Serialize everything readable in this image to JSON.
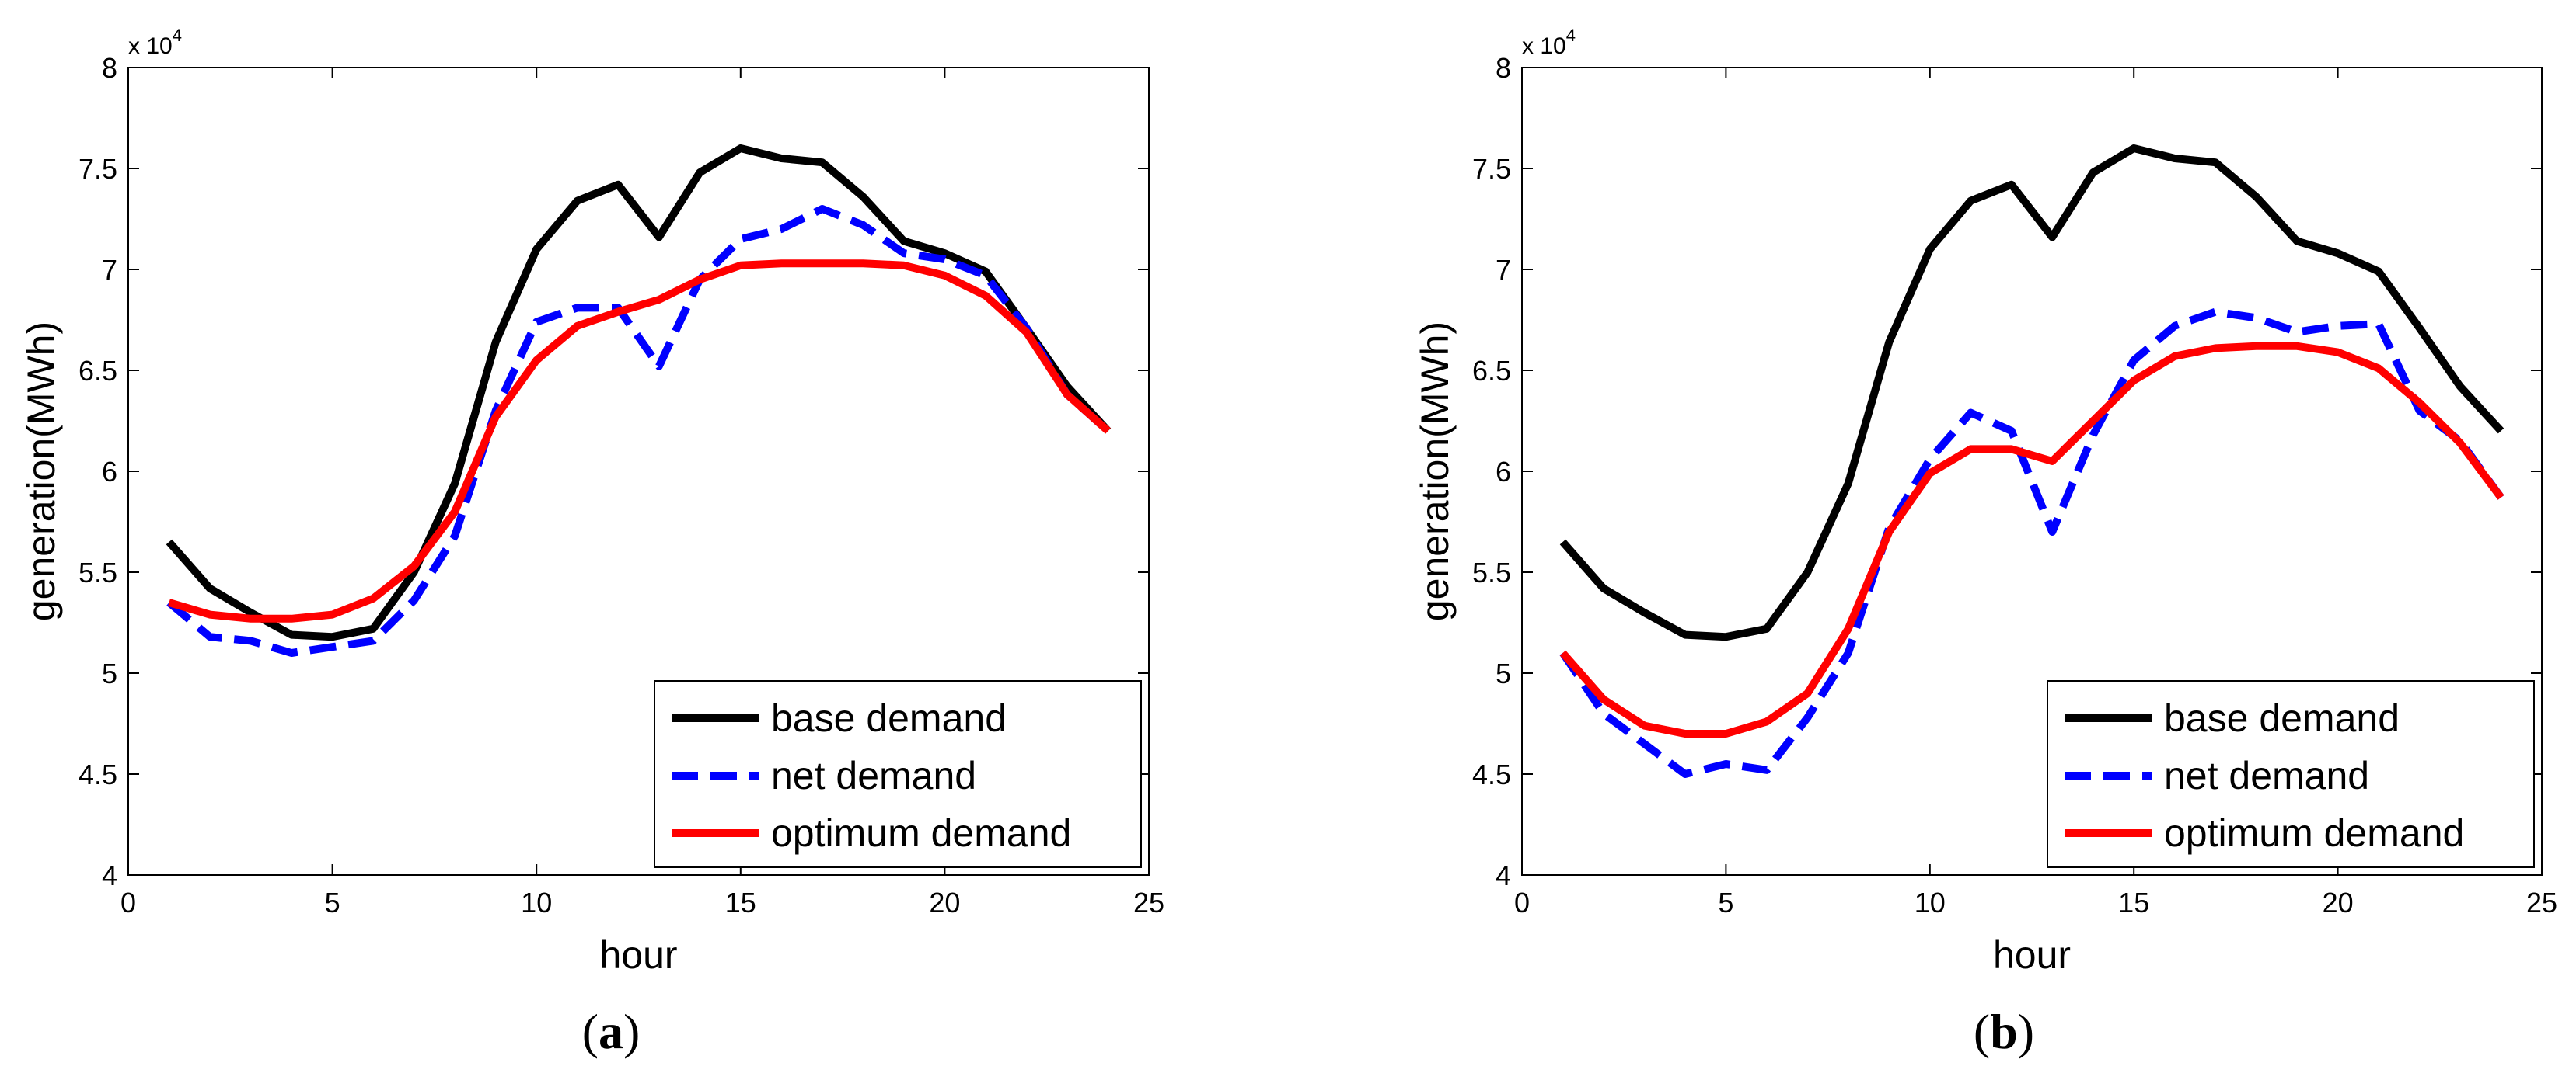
{
  "figure": {
    "panels": [
      {
        "label_open": "(",
        "label_letter": "a",
        "label_close": ")"
      },
      {
        "label_open": "(",
        "label_letter": "b",
        "label_close": ")"
      }
    ]
  },
  "chart_data": [
    {
      "type": "line",
      "title": "",
      "panel": "a",
      "xlabel": "hour",
      "ylabel": "generation(MWh)",
      "y_multiplier_base": "x 10",
      "y_multiplier_exp": "4",
      "xlim": [
        0,
        25
      ],
      "ylim": [
        4,
        8
      ],
      "xticks": [
        0,
        5,
        10,
        15,
        20,
        25
      ],
      "xtick_labels": [
        "0",
        "5",
        "10",
        "15",
        "20",
        "25"
      ],
      "yticks": [
        4,
        4.5,
        5,
        5.5,
        6,
        6.5,
        7,
        7.5,
        8
      ],
      "ytick_labels": [
        "4",
        "4.5",
        "5",
        "5.5",
        "6",
        "6.5",
        "7",
        "7.5",
        "8"
      ],
      "grid": false,
      "legend_position": "bottom-right",
      "x": [
        1,
        2,
        3,
        4,
        5,
        6,
        7,
        8,
        9,
        10,
        11,
        12,
        13,
        14,
        15,
        16,
        17,
        18,
        19,
        20,
        21,
        22,
        23,
        24
      ],
      "series": [
        {
          "name": "base demand",
          "color": "#000000",
          "style": "solid",
          "values": [
            5.65,
            5.42,
            5.3,
            5.19,
            5.18,
            5.22,
            5.5,
            5.94,
            6.64,
            7.1,
            7.34,
            7.42,
            7.16,
            7.48,
            7.6,
            7.55,
            7.53,
            7.36,
            7.14,
            7.08,
            6.99,
            6.71,
            6.42,
            6.2
          ]
        },
        {
          "name": "net demand",
          "color": "#0000ff",
          "style": "dashed",
          "values": [
            5.35,
            5.18,
            5.16,
            5.1,
            5.13,
            5.16,
            5.36,
            5.68,
            6.3,
            6.74,
            6.81,
            6.81,
            6.52,
            6.95,
            7.15,
            7.2,
            7.3,
            7.22,
            7.08,
            7.05,
            6.97,
            6.71,
            6.38,
            6.2
          ]
        },
        {
          "name": "optimum demand",
          "color": "#ff0000",
          "style": "solid",
          "values": [
            5.35,
            5.29,
            5.27,
            5.27,
            5.29,
            5.37,
            5.53,
            5.8,
            6.27,
            6.55,
            6.72,
            6.79,
            6.85,
            6.95,
            7.02,
            7.03,
            7.03,
            7.03,
            7.02,
            6.97,
            6.87,
            6.69,
            6.38,
            6.2
          ]
        }
      ]
    },
    {
      "type": "line",
      "title": "",
      "panel": "b",
      "xlabel": "hour",
      "ylabel": "generation(MWh)",
      "y_multiplier_base": "x 10",
      "y_multiplier_exp": "4",
      "xlim": [
        0,
        25
      ],
      "ylim": [
        4,
        8
      ],
      "xticks": [
        0,
        5,
        10,
        15,
        20,
        25
      ],
      "xtick_labels": [
        "0",
        "5",
        "10",
        "15",
        "20",
        "25"
      ],
      "yticks": [
        4,
        4.5,
        5,
        5.5,
        6,
        6.5,
        7,
        7.5,
        8
      ],
      "ytick_labels": [
        "4",
        "4.5",
        "5",
        "5.5",
        "6",
        "6.5",
        "7",
        "7.5",
        "8"
      ],
      "grid": false,
      "legend_position": "bottom-right",
      "x": [
        1,
        2,
        3,
        4,
        5,
        6,
        7,
        8,
        9,
        10,
        11,
        12,
        13,
        14,
        15,
        16,
        17,
        18,
        19,
        20,
        21,
        22,
        23,
        24
      ],
      "series": [
        {
          "name": "base demand",
          "color": "#000000",
          "style": "solid",
          "values": [
            5.65,
            5.42,
            5.3,
            5.19,
            5.18,
            5.22,
            5.5,
            5.94,
            6.64,
            7.1,
            7.34,
            7.42,
            7.16,
            7.48,
            7.6,
            7.55,
            7.53,
            7.36,
            7.14,
            7.08,
            6.99,
            6.71,
            6.42,
            6.2
          ]
        },
        {
          "name": "net demand",
          "color": "#0000ff",
          "style": "dashed",
          "values": [
            5.1,
            4.8,
            4.65,
            4.5,
            4.55,
            4.52,
            4.78,
            5.1,
            5.72,
            6.06,
            6.29,
            6.2,
            5.7,
            6.18,
            6.55,
            6.72,
            6.79,
            6.76,
            6.69,
            6.72,
            6.73,
            6.3,
            6.15,
            5.87
          ]
        },
        {
          "name": "optimum demand",
          "color": "#ff0000",
          "style": "solid",
          "values": [
            5.1,
            4.87,
            4.74,
            4.7,
            4.7,
            4.76,
            4.9,
            5.22,
            5.7,
            5.99,
            6.11,
            6.11,
            6.05,
            6.25,
            6.45,
            6.57,
            6.61,
            6.62,
            6.62,
            6.59,
            6.51,
            6.34,
            6.14,
            5.87
          ]
        }
      ]
    }
  ]
}
